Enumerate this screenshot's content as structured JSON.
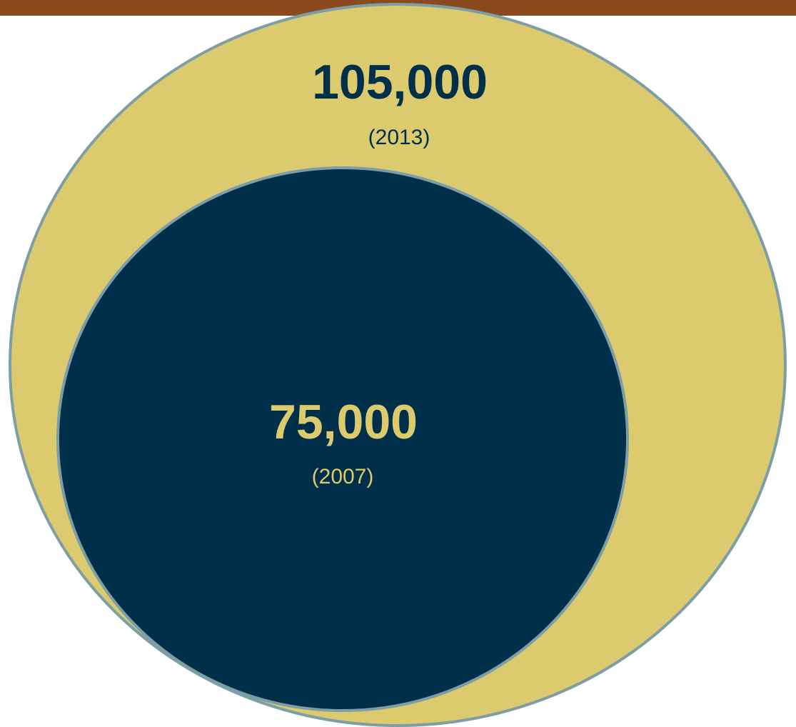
{
  "chart_data": {
    "type": "bubble",
    "title": "",
    "items": [
      {
        "value": 105000,
        "value_label": "105,000",
        "year_label": "(2013)",
        "fill": "#DBCB6E",
        "text_color": "#003049"
      },
      {
        "value": 75000,
        "value_label": "75,000",
        "year_label": "(2007)",
        "fill": "#003049",
        "text_color": "#DBCB6E"
      }
    ]
  },
  "colors": {
    "top_bar": "#8B4A1E",
    "outline": "#7E9EA6",
    "background": "#FFFFFF"
  }
}
